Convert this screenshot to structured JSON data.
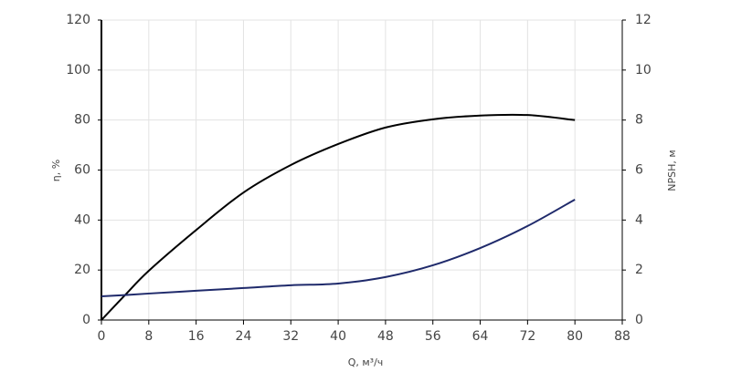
{
  "chart_data": {
    "type": "line",
    "x": [
      0,
      4,
      8,
      16,
      24,
      32,
      40,
      48,
      56,
      64,
      72,
      80
    ],
    "series": [
      {
        "name": "η",
        "color": "#000000",
        "values": [
          0,
          10,
          19.7,
          36,
          51,
          62,
          70.4,
          77,
          80.3,
          81.8,
          82,
          80
        ]
      },
      {
        "name": "NPSH",
        "color": "#1f2a6b",
        "axis": "y2",
        "values": [
          0.95,
          1.0,
          1.06,
          1.17,
          1.28,
          1.39,
          1.46,
          1.72,
          2.19,
          2.88,
          3.76,
          4.82
        ]
      }
    ],
    "xlabel": "Q, м³/ч",
    "ylabel": "η, %",
    "y2label": "NPSH, м",
    "xlim": [
      0,
      88
    ],
    "xticks": [
      0,
      8,
      16,
      24,
      32,
      40,
      48,
      56,
      64,
      72,
      80,
      88
    ],
    "ylim": [
      0,
      120
    ],
    "yticks": [
      0,
      20,
      40,
      60,
      80,
      100,
      120
    ],
    "y2lim": [
      0,
      12
    ],
    "y2ticks": [
      0,
      2,
      4,
      6,
      8,
      10,
      12
    ],
    "grid": true
  }
}
